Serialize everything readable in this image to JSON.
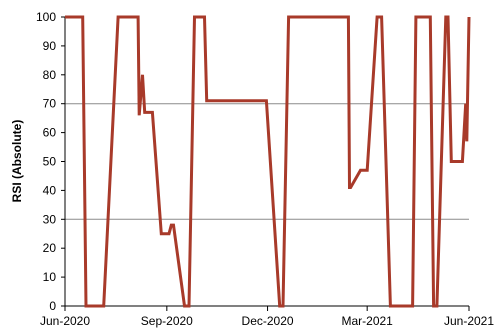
{
  "chart_data": {
    "type": "line",
    "title": "",
    "xlabel": "",
    "ylabel": "RSI (Absolute)",
    "xlim": [
      "2020-06-01",
      "2021-06-01"
    ],
    "ylim": [
      0,
      100
    ],
    "x_ticks": [
      "2020-06-01",
      "2020-09-01",
      "2020-12-01",
      "2021-03-01",
      "2021-06-01"
    ],
    "x_tick_labels": [
      "Jun-2020",
      "Sep-2020",
      "Dec-2020",
      "Mar-2021",
      "Jun-2021"
    ],
    "y_ticks": [
      0,
      10,
      20,
      30,
      40,
      50,
      60,
      70,
      80,
      90,
      100
    ],
    "y_tick_labels": [
      "0",
      "10",
      "20",
      "30",
      "40",
      "50",
      "60",
      "70",
      "80",
      "90",
      "100"
    ],
    "reference_lines": [
      30,
      70
    ],
    "grid": false,
    "legend": "none",
    "line_color": "#a83a2a",
    "reference_color": "#8c8c8c",
    "series": [
      {
        "x": [
          "2020-06-01",
          "2020-06-17",
          "2020-06-20",
          "2020-07-01",
          "2020-07-06",
          "2020-07-19",
          "2020-07-20",
          "2020-07-21",
          "2020-07-22",
          "2020-07-23",
          "2020-07-27",
          "2020-07-29",
          "2020-08-06",
          "2020-08-07",
          "2020-08-10",
          "2020-08-12",
          "2020-08-13",
          "2020-08-17",
          "2020-08-19",
          "2020-08-27",
          "2020-08-28",
          "2020-08-31",
          "2020-09-03",
          "2020-09-05",
          "2020-09-07",
          "2020-09-17",
          "2020-09-21",
          "2020-09-26",
          "2020-09-28",
          "2020-10-05",
          "2020-10-07",
          "2020-11-30",
          "2020-12-12",
          "2020-12-15",
          "2020-12-20",
          "2020-12-22",
          "2020-12-26",
          "2021-01-01",
          "2021-01-02",
          "2021-01-03",
          "2021-01-06",
          "2021-01-12",
          "2021-01-16",
          "2021-01-25",
          "2021-02-12",
          "2021-02-13",
          "2021-02-14",
          "2021-02-23",
          "2021-03-01",
          "2021-03-10",
          "2021-03-14",
          "2021-03-22",
          "2021-04-11",
          "2021-04-14",
          "2021-04-27",
          "2021-04-30",
          "2021-05-03",
          "2021-05-11",
          "2021-05-13",
          "2021-05-16",
          "2021-05-24",
          "2021-05-26",
          "2021-05-29",
          "2021-05-30",
          "2021-06-01"
        ],
        "y": [
          100,
          100,
          0,
          0,
          0,
          100,
          100,
          100,
          100,
          100,
          100,
          100,
          100,
          66,
          80,
          67,
          67,
          67,
          67,
          25,
          25,
          25,
          25,
          28,
          28,
          0,
          0,
          100,
          100,
          100,
          71,
          71,
          0,
          0,
          100,
          100,
          100,
          100,
          100,
          100,
          100,
          100,
          100,
          100,
          100,
          41,
          41,
          47,
          47,
          100,
          100,
          0,
          0,
          100,
          100,
          0,
          0,
          100,
          100,
          50,
          50,
          50,
          70,
          57,
          100
        ]
      }
    ]
  }
}
